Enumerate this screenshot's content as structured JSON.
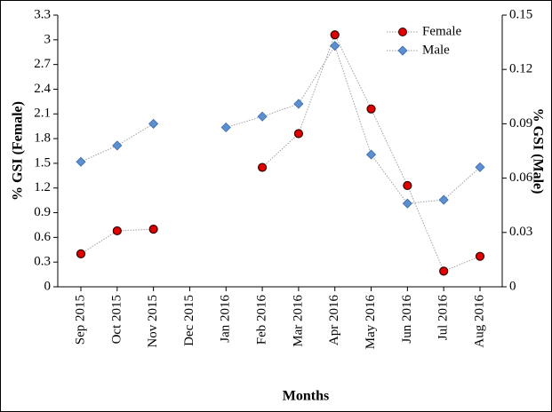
{
  "chart_data": {
    "type": "line",
    "x_label": "Months",
    "y_label": "% GSI (Female)",
    "y2_label": "% GSI (Male)",
    "categories": [
      "Sep 2015",
      "Oct 2015",
      "Nov 2015",
      "Dec 2015",
      "Jan 2016",
      "Feb 2016",
      "Mar 2016",
      "Apr 2016",
      "May 2016",
      "Jun 2016",
      "Jul 2016",
      "Aug 2016"
    ],
    "series": [
      {
        "name": "Female",
        "color": "#e00000",
        "marker": "circle",
        "values": [
          0.4,
          0.68,
          0.7,
          null,
          null,
          1.45,
          1.86,
          3.06,
          2.16,
          1.23,
          0.19,
          0.37
        ]
      },
      {
        "name": "Male",
        "color": "#5b8fd0",
        "marker": "diamond",
        "axis": "y2",
        "values": [
          0.069,
          0.078,
          0.09,
          null,
          0.088,
          0.094,
          0.101,
          0.133,
          0.073,
          0.046,
          0.048,
          0.066
        ]
      }
    ],
    "ylim": [
      0,
      3.3
    ],
    "yticks": [
      0,
      0.3,
      0.6,
      0.9,
      1.2,
      1.5,
      1.8,
      2.1,
      2.4,
      2.7,
      3,
      3.3
    ],
    "y2lim": [
      0,
      0.15
    ],
    "y2ticks": [
      0,
      0.03,
      0.06,
      0.09,
      0.12,
      0.15
    ],
    "legend": "top-right",
    "grid": false
  }
}
